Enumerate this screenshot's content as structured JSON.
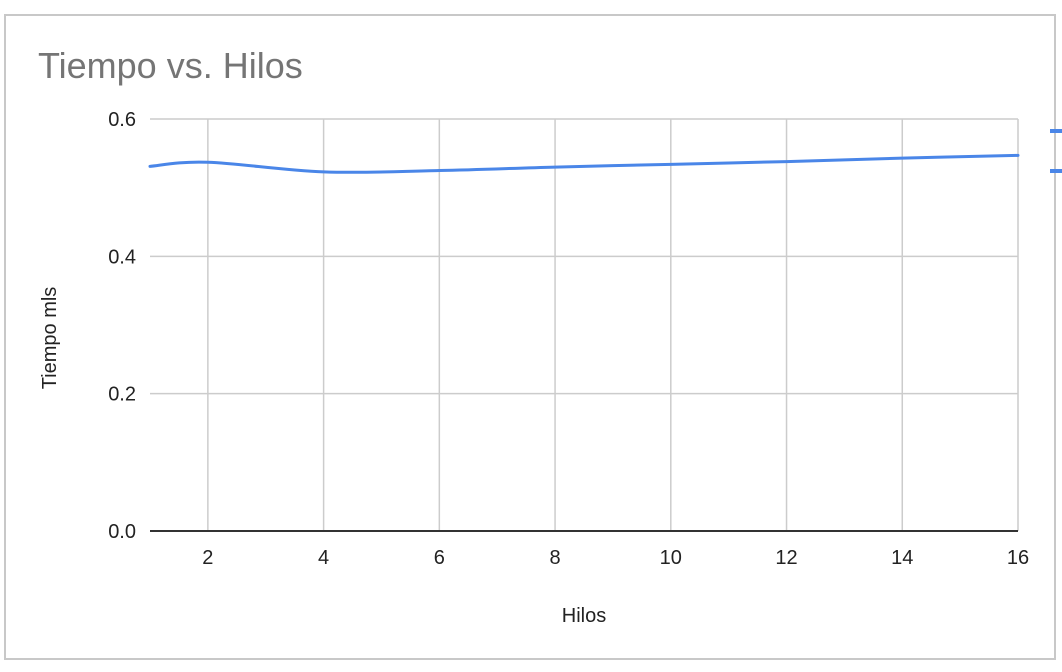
{
  "chart_data": {
    "type": "line",
    "title": "Tiempo vs. Hilos",
    "xlabel": "Hilos",
    "ylabel": "Tiempo mls",
    "xlim": [
      1,
      16
    ],
    "ylim": [
      0,
      0.6
    ],
    "x_ticks": [
      "2",
      "4",
      "6",
      "8",
      "10",
      "12",
      "14",
      "16"
    ],
    "y_ticks": [
      "0.0",
      "0.2",
      "0.4",
      "0.6"
    ],
    "grid": true,
    "series": [
      {
        "color": "#4a86e8",
        "x": [
          1,
          2,
          4,
          6,
          8,
          10,
          12,
          14,
          16
        ],
        "values": [
          0.531,
          0.537,
          0.523,
          0.525,
          0.53,
          0.534,
          0.538,
          0.543,
          0.547
        ]
      }
    ],
    "colors": {
      "line": "#4a86e8",
      "grid": "#cccccc",
      "axis": "#333333",
      "title": "#757575",
      "text": "#222222",
      "frame": "#c8c8c8"
    }
  }
}
